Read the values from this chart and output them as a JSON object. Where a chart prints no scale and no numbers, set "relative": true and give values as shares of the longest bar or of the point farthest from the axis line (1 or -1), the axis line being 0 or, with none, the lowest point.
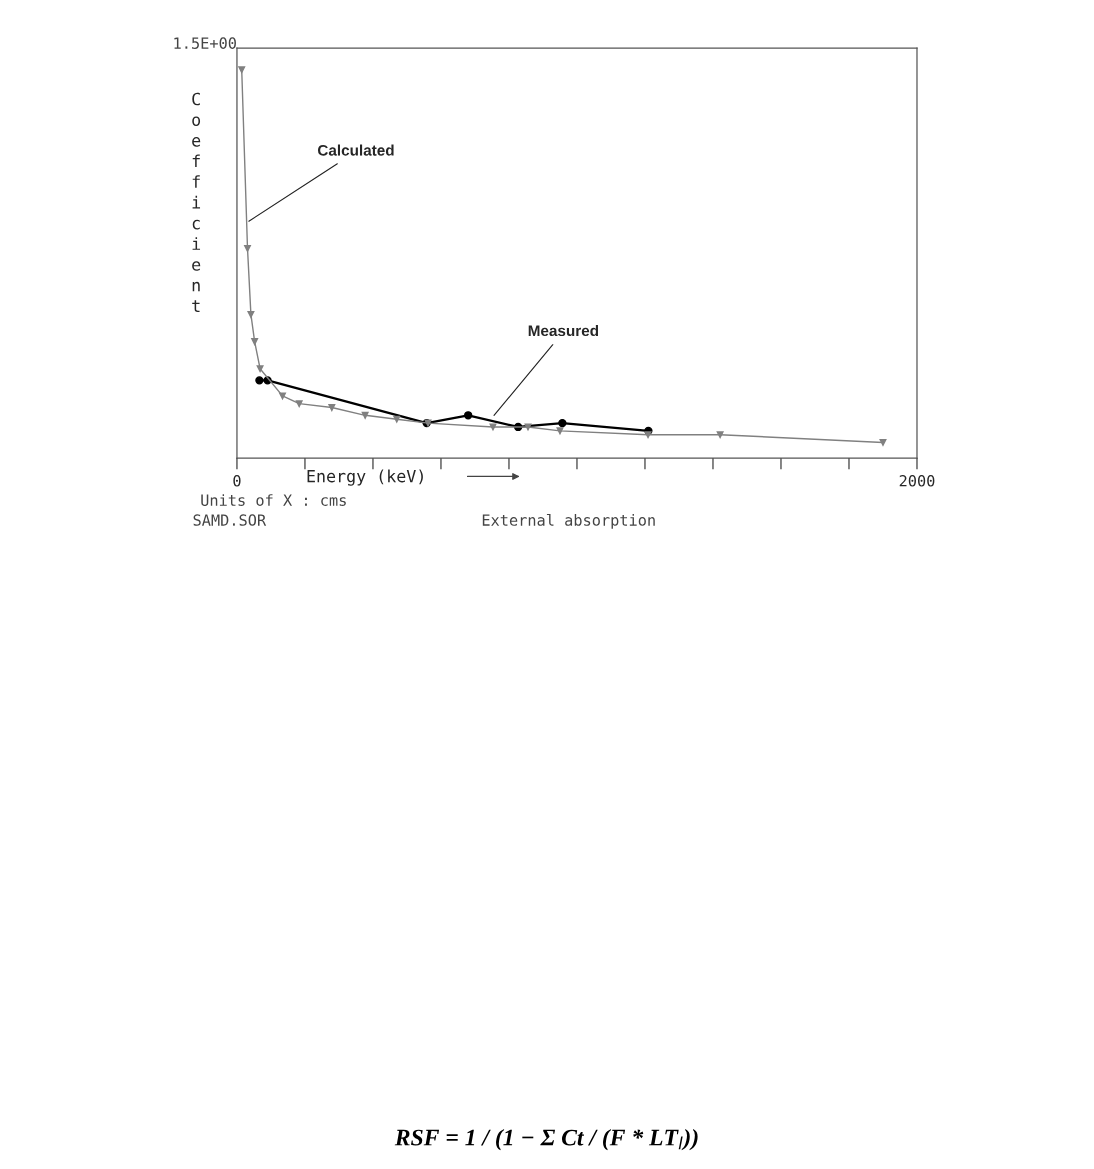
{
  "chart_data": {
    "type": "line",
    "xlabel": "Energy (keV)",
    "ylabel": "Coefficient",
    "xlim": [
      0,
      2000
    ],
    "xticks": [
      0,
      {
        "value": 200,
        "label": null
      },
      {
        "value": 400,
        "label": null
      },
      {
        "value": 600,
        "label": null
      },
      {
        "value": 800,
        "label": null
      },
      {
        "value": 1000,
        "label": null
      },
      {
        "value": 1200,
        "label": null
      },
      {
        "value": 1400,
        "label": null
      },
      {
        "value": 1600,
        "label": null
      },
      {
        "value": 1800,
        "label": null
      },
      2000
    ],
    "relative": true,
    "grid": false,
    "series": [
      {
        "color": "#808080",
        "marker": "triangle",
        "x": [
          14,
          31,
          41,
          52,
          68,
          134,
          183,
          279,
          377,
          470,
          562,
          753,
          856,
          950,
          1209,
          1421,
          1900
        ],
        "values": [
          1,
          0.54,
          0.37,
          0.3,
          0.23,
          0.16,
          0.14,
          0.13,
          0.11,
          0.1,
          0.09,
          0.08,
          0.08,
          0.07,
          0.06,
          0.06,
          0.04
        ]
      },
      {
        "color": "#000000",
        "marker": "circle",
        "x": [
          66,
          90,
          558,
          680,
          827,
          957,
          1210
        ],
        "values": [
          0.2,
          0.2,
          0.09,
          0.11,
          0.08,
          0.09,
          0.07
        ]
      }
    ],
    "annotations": [
      "1.5E+00",
      {
        "text": "Calculated",
        "x": 35,
        "y": 0.61
      },
      {
        "text": "Measured",
        "x": 756,
        "y": 0.11
      },
      "Units of X : cms",
      "SAMD.SOR",
      "External absorption",
      "RSF = 1 / (1 − Σ Ct / (F * LT$_{l}$))"
    ]
  }
}
